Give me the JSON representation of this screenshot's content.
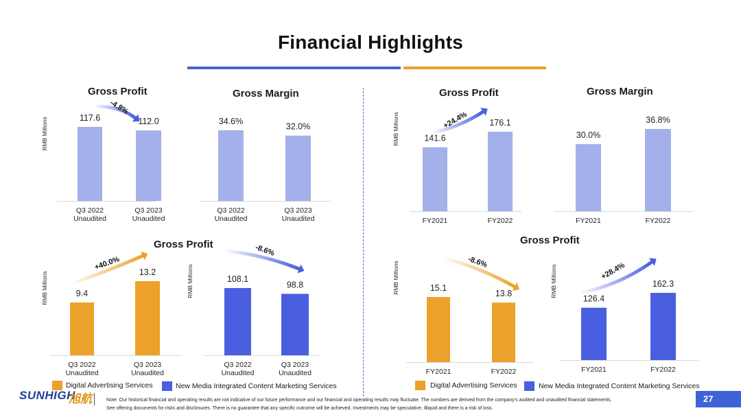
{
  "title": "Financial Highlights",
  "colors": {
    "light_bar": "#a4b0ea",
    "orange": "#eca22a",
    "blue": "#4a5ee0",
    "underline_blue": "#4a63d0",
    "underline_orange": "#e8a22c",
    "divider": "#4a66d6"
  },
  "headings": {
    "gross_profit_q3": "Gross Profit",
    "gross_margin_q3": "Gross Margin",
    "gross_profit_fy": "Gross Profit",
    "gross_margin_fy": "Gross Margin",
    "gross_profit_segment_q3": "Gross Profit",
    "gross_profit_segment_fy": "Gross Profit"
  },
  "legend": {
    "digital": "Digital Advertising Services",
    "new_media": "New Media Integrated Content Marketing Services"
  },
  "footer": {
    "logo_text": "SUNHIGH",
    "logo_cn": "旭航",
    "note_line1": "Note: Our historical financial and operating results are not indicative of our future performance and our financial and operating results may fluctuate. The numbers are derived from the company's audited and unaudited financial statements.",
    "note_line2": "See offering documents for risks and disclosures. There is no guarantee that any specific outcome will be achieved. Investments may be speculative, illiquid and there is a risk of loss.",
    "page_number": "27"
  },
  "chart_data": [
    {
      "id": "q3-gross-profit",
      "type": "bar",
      "title": "Gross Profit",
      "ylabel": "RMB Millions",
      "categories": [
        [
          "Q3 2022",
          "Unaudited"
        ],
        [
          "Q3 2023",
          "Unaudited"
        ]
      ],
      "values": [
        117.6,
        112.0
      ],
      "labels": [
        "117.6",
        "112.0"
      ],
      "ylim": [
        0,
        117.6
      ],
      "color": "light_bar",
      "arrow_color": "blue",
      "change": "-4.8%"
    },
    {
      "id": "q3-gross-margin",
      "type": "bar",
      "title": "Gross Margin",
      "ylabel": "",
      "categories": [
        [
          "Q3 2022",
          "Unaudited"
        ],
        [
          "Q3 2023",
          "Unaudited"
        ]
      ],
      "values": [
        34.6,
        32.0
      ],
      "labels": [
        "34.6%",
        "32.0%"
      ],
      "ylim": [
        0,
        34.6
      ],
      "color": "light_bar"
    },
    {
      "id": "fy-gross-profit",
      "type": "bar",
      "title": "Gross Profit",
      "ylabel": "RMB Millions",
      "categories": [
        [
          "FY2021"
        ],
        [
          "FY2022"
        ]
      ],
      "values": [
        141.6,
        176.1
      ],
      "labels": [
        "141.6",
        "176.1"
      ],
      "ylim": [
        0,
        176.1
      ],
      "color": "light_bar",
      "arrow_color": "blue",
      "change": "+24.4%"
    },
    {
      "id": "fy-gross-margin",
      "type": "bar",
      "title": "Gross Margin",
      "ylabel": "",
      "categories": [
        [
          "FY2021"
        ],
        [
          "FY2022"
        ]
      ],
      "values": [
        30.0,
        36.8
      ],
      "labels": [
        "30.0%",
        "36.8%"
      ],
      "ylim": [
        0,
        36.8
      ],
      "color": "light_bar"
    },
    {
      "id": "q3-digital",
      "type": "bar",
      "ylabel": "RMB Millions",
      "series_name": "Digital Advertising Services",
      "categories": [
        [
          "Q3 2022",
          "Unaudited"
        ],
        [
          "Q3 2023",
          "Unaudited"
        ]
      ],
      "values": [
        9.4,
        13.2
      ],
      "labels": [
        "9.4",
        "13.2"
      ],
      "ylim": [
        0,
        13.2
      ],
      "color": "orange",
      "arrow_color": "orange",
      "change": "+40.0%"
    },
    {
      "id": "q3-new-media",
      "type": "bar",
      "ylabel": "RMB Millions",
      "series_name": "New Media Integrated Content Marketing Services",
      "categories": [
        [
          "Q3 2022",
          "Unaudited"
        ],
        [
          "Q3 2023",
          "Unaudited"
        ]
      ],
      "values": [
        108.1,
        98.8
      ],
      "labels": [
        "108.1",
        "98.8"
      ],
      "ylim": [
        0,
        108.1
      ],
      "color": "blue",
      "arrow_color": "blue",
      "change": "-8.6%"
    },
    {
      "id": "fy-digital",
      "type": "bar",
      "ylabel": "RMB Millions",
      "series_name": "Digital Advertising Services",
      "categories": [
        [
          "FY2021"
        ],
        [
          "FY2022"
        ]
      ],
      "values": [
        15.1,
        13.8
      ],
      "labels": [
        "15.1",
        "13.8"
      ],
      "ylim": [
        0,
        15.1
      ],
      "color": "orange",
      "arrow_color": "orange",
      "change": "-8.6%"
    },
    {
      "id": "fy-new-media",
      "type": "bar",
      "ylabel": "RMB Millions",
      "series_name": "New Media Integrated Content Marketing Services",
      "categories": [
        [
          "FY2021"
        ],
        [
          "FY2022"
        ]
      ],
      "values": [
        126.4,
        162.3
      ],
      "labels": [
        "126.4",
        "162.3"
      ],
      "ylim": [
        0,
        162.3
      ],
      "color": "blue",
      "arrow_color": "blue",
      "change": "+28.4%"
    }
  ]
}
